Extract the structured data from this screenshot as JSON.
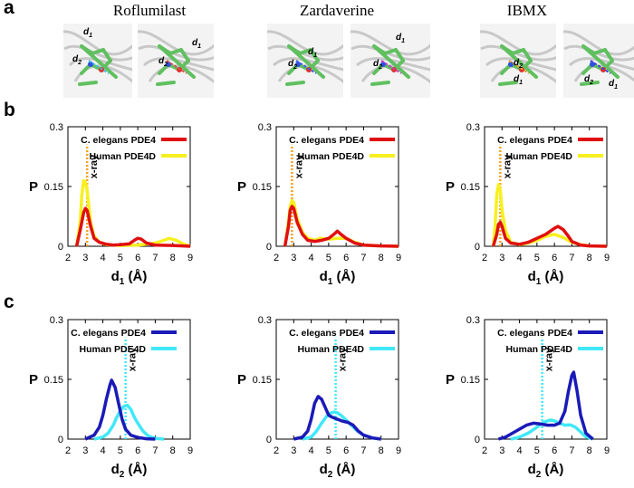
{
  "panels": {
    "a": "a",
    "b": "b",
    "c": "c"
  },
  "drugs": [
    "Roflumilast",
    "Zardaverine",
    "IBMX"
  ],
  "structure_labels": {
    "d1": "d",
    "d1_sub": "1",
    "d2": "d",
    "d2_sub": "2"
  },
  "colors": {
    "celegans_d1": "#e01010",
    "human_d1": "#f7f020",
    "xray_d1": "#f5a020",
    "celegans_d2": "#1a1ab8",
    "human_d2": "#40e8f8",
    "xray_d2": "#40e8f8"
  },
  "chart_data": [
    {
      "type": "line",
      "row": "b",
      "drug": "Roflumilast",
      "xlabel": "d",
      "xlabel_sub": "1",
      "xlabel_unit": " (Å)",
      "ylabel": "P",
      "xlim": [
        2,
        9
      ],
      "ylim": [
        0,
        0.3
      ],
      "xticks": [
        "2",
        "3",
        "4",
        "5",
        "6",
        "7",
        "8",
        "9"
      ],
      "yticks": [
        "0",
        "0.15",
        "0.3"
      ],
      "xray": 3.1,
      "xray_label": "x-ray",
      "legend_position": "top-right",
      "series": [
        {
          "name": "C. elegans PDE4",
          "x": [
            2.5,
            2.7,
            2.9,
            3.0,
            3.1,
            3.3,
            3.5,
            3.8,
            4.2,
            4.6,
            5.0,
            5.5,
            5.8,
            6.0,
            6.2,
            6.5,
            7.0,
            8.0,
            9.0
          ],
          "y": [
            0,
            0.04,
            0.085,
            0.095,
            0.09,
            0.05,
            0.02,
            0.01,
            0.005,
            0.003,
            0.004,
            0.006,
            0.015,
            0.02,
            0.018,
            0.008,
            0.003,
            0.002,
            0
          ]
        },
        {
          "name": "Human PDE4D",
          "x": [
            2.5,
            2.7,
            2.8,
            2.9,
            3.0,
            3.1,
            3.3,
            3.5,
            3.8,
            4.2,
            5.0,
            6.0,
            7.0,
            7.5,
            7.8,
            8.2,
            8.6,
            9.0
          ],
          "y": [
            0,
            0.06,
            0.13,
            0.165,
            0.16,
            0.14,
            0.06,
            0.025,
            0.01,
            0.004,
            0.002,
            0.003,
            0.008,
            0.015,
            0.02,
            0.015,
            0.006,
            0
          ]
        }
      ]
    },
    {
      "type": "line",
      "row": "b",
      "drug": "Zardaverine",
      "xlabel": "d",
      "xlabel_sub": "1",
      "xlabel_unit": " (Å)",
      "ylabel": "P",
      "xlim": [
        2,
        9
      ],
      "ylim": [
        0,
        0.3
      ],
      "xticks": [
        "2",
        "3",
        "4",
        "5",
        "6",
        "7",
        "8",
        "9"
      ],
      "yticks": [
        "0",
        "0.15",
        "0.3"
      ],
      "xray": 2.9,
      "xray_label": "x-ray",
      "legend_position": "top-right",
      "series": [
        {
          "name": "C. elegans PDE4",
          "x": [
            2.5,
            2.7,
            2.8,
            2.9,
            3.0,
            3.2,
            3.5,
            3.8,
            4.2,
            4.6,
            5.0,
            5.3,
            5.5,
            5.7,
            6.0,
            6.5,
            7.0,
            8.0,
            9.0
          ],
          "y": [
            0,
            0.05,
            0.09,
            0.1,
            0.095,
            0.06,
            0.03,
            0.015,
            0.012,
            0.015,
            0.02,
            0.03,
            0.038,
            0.03,
            0.02,
            0.008,
            0.003,
            0.001,
            0
          ]
        },
        {
          "name": "Human PDE4D",
          "x": [
            2.5,
            2.7,
            2.8,
            2.9,
            3.0,
            3.2,
            3.5,
            3.8,
            4.2,
            4.5,
            5.0,
            5.5,
            6.0,
            6.5,
            7.0,
            8.0,
            9.0
          ],
          "y": [
            0,
            0.06,
            0.1,
            0.115,
            0.11,
            0.07,
            0.035,
            0.02,
            0.015,
            0.02,
            0.018,
            0.02,
            0.02,
            0.01,
            0.003,
            0.001,
            0
          ]
        }
      ]
    },
    {
      "type": "line",
      "row": "b",
      "drug": "IBMX",
      "xlabel": "d",
      "xlabel_sub": "1",
      "xlabel_unit": " (Å)",
      "ylabel": "P",
      "xlim": [
        2,
        9
      ],
      "ylim": [
        0,
        0.3
      ],
      "xticks": [
        "2",
        "3",
        "4",
        "5",
        "6",
        "7",
        "8",
        "9"
      ],
      "yticks": [
        "0",
        "0.15",
        "0.3"
      ],
      "xray": 2.9,
      "xray_label": "x-ray",
      "legend_position": "top-right",
      "series": [
        {
          "name": "C. elegans PDE4",
          "x": [
            2.5,
            2.7,
            2.8,
            2.9,
            3.0,
            3.2,
            3.5,
            4.0,
            4.5,
            5.0,
            5.5,
            6.0,
            6.2,
            6.5,
            6.8,
            7.0,
            7.5,
            8.0,
            9.0
          ],
          "y": [
            0,
            0.03,
            0.055,
            0.06,
            0.05,
            0.02,
            0.008,
            0.005,
            0.01,
            0.02,
            0.03,
            0.045,
            0.05,
            0.042,
            0.025,
            0.012,
            0.003,
            0.001,
            0
          ]
        },
        {
          "name": "Human PDE4D",
          "x": [
            2.5,
            2.6,
            2.7,
            2.8,
            2.9,
            3.0,
            3.2,
            3.5,
            4.0,
            4.5,
            5.0,
            5.5,
            6.0,
            6.5,
            7.0,
            7.5,
            8.0,
            9.0
          ],
          "y": [
            0,
            0.05,
            0.13,
            0.155,
            0.14,
            0.09,
            0.04,
            0.01,
            0.004,
            0.008,
            0.015,
            0.025,
            0.03,
            0.022,
            0.01,
            0.004,
            0.001,
            0
          ]
        }
      ]
    },
    {
      "type": "line",
      "row": "c",
      "drug": "Roflumilast",
      "xlabel": "d",
      "xlabel_sub": "2",
      "xlabel_unit": " (Å)",
      "ylabel": "P",
      "xlim": [
        2,
        9
      ],
      "ylim": [
        0,
        0.3
      ],
      "xticks": [
        "2",
        "3",
        "4",
        "5",
        "6",
        "7",
        "8",
        "9"
      ],
      "yticks": [
        "0",
        "0.15",
        "0.3"
      ],
      "xray": 5.3,
      "xray_label": "x-ray",
      "legend_position": "top-left",
      "series": [
        {
          "name": "C. elegans PDE4",
          "x": [
            3.0,
            3.5,
            3.8,
            4.0,
            4.2,
            4.4,
            4.5,
            4.7,
            4.9,
            5.1,
            5.3,
            5.6,
            6.0,
            6.5,
            7.0
          ],
          "y": [
            0,
            0.01,
            0.03,
            0.06,
            0.1,
            0.135,
            0.148,
            0.13,
            0.09,
            0.05,
            0.025,
            0.01,
            0.004,
            0.001,
            0
          ]
        },
        {
          "name": "Human PDE4D",
          "x": [
            3.5,
            4.0,
            4.3,
            4.6,
            4.8,
            5.0,
            5.2,
            5.4,
            5.6,
            5.8,
            6.0,
            6.3,
            6.6,
            7.0,
            7.5
          ],
          "y": [
            0,
            0.005,
            0.015,
            0.035,
            0.055,
            0.072,
            0.082,
            0.085,
            0.075,
            0.055,
            0.04,
            0.02,
            0.008,
            0.002,
            0
          ]
        }
      ]
    },
    {
      "type": "line",
      "row": "c",
      "drug": "Zardaverine",
      "xlabel": "d",
      "xlabel_sub": "2",
      "xlabel_unit": " (Å)",
      "ylabel": "P",
      "xlim": [
        2,
        9
      ],
      "ylim": [
        0,
        0.3
      ],
      "xticks": [
        "2",
        "3",
        "4",
        "5",
        "6",
        "7",
        "8",
        "9"
      ],
      "yticks": [
        "0",
        "0.15",
        "0.3"
      ],
      "xray": 5.4,
      "xray_label": "x-ray",
      "legend_position": "top-right",
      "series": [
        {
          "name": "C. elegans PDE4",
          "x": [
            3.0,
            3.5,
            3.8,
            4.0,
            4.2,
            4.4,
            4.6,
            4.8,
            5.0,
            5.2,
            5.5,
            5.8,
            6.1,
            6.4,
            6.7,
            7.0,
            7.5,
            8.0
          ],
          "y": [
            0,
            0.005,
            0.02,
            0.05,
            0.09,
            0.107,
            0.1,
            0.08,
            0.06,
            0.055,
            0.05,
            0.045,
            0.042,
            0.035,
            0.02,
            0.01,
            0.003,
            0
          ]
        },
        {
          "name": "Human PDE4D",
          "x": [
            3.5,
            4.0,
            4.3,
            4.6,
            4.9,
            5.1,
            5.3,
            5.5,
            5.7,
            6.0,
            6.3,
            6.6,
            7.0,
            7.5,
            8.0
          ],
          "y": [
            0,
            0.005,
            0.02,
            0.04,
            0.058,
            0.065,
            0.068,
            0.066,
            0.06,
            0.048,
            0.035,
            0.022,
            0.01,
            0.003,
            0
          ]
        }
      ]
    },
    {
      "type": "line",
      "row": "c",
      "drug": "IBMX",
      "xlabel": "d",
      "xlabel_sub": "2",
      "xlabel_unit": " (Å)",
      "ylabel": "P",
      "xlim": [
        2,
        9
      ],
      "ylim": [
        0,
        0.3
      ],
      "xticks": [
        "2",
        "3",
        "4",
        "5",
        "6",
        "7",
        "8",
        "9"
      ],
      "yticks": [
        "0",
        "0.15",
        "0.3"
      ],
      "xray": 5.3,
      "xray_label": "x-ray",
      "legend_position": "top-right",
      "series": [
        {
          "name": "C. elegans PDE4",
          "x": [
            2.8,
            3.2,
            3.6,
            4.0,
            4.4,
            4.8,
            5.2,
            5.6,
            6.0,
            6.3,
            6.6,
            6.8,
            7.0,
            7.1,
            7.3,
            7.5,
            7.8,
            8.2
          ],
          "y": [
            0,
            0.005,
            0.015,
            0.025,
            0.035,
            0.04,
            0.038,
            0.035,
            0.035,
            0.04,
            0.07,
            0.12,
            0.16,
            0.168,
            0.12,
            0.06,
            0.015,
            0
          ]
        },
        {
          "name": "Human PDE4D",
          "x": [
            3.5,
            4.0,
            4.5,
            5.0,
            5.3,
            5.6,
            5.8,
            6.0,
            6.3,
            6.6,
            6.9,
            7.2,
            7.5,
            7.8,
            8.2
          ],
          "y": [
            0,
            0.005,
            0.015,
            0.03,
            0.04,
            0.046,
            0.048,
            0.046,
            0.04,
            0.035,
            0.036,
            0.03,
            0.018,
            0.006,
            0
          ]
        }
      ]
    }
  ]
}
